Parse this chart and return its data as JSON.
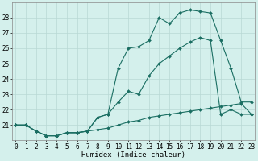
{
  "xlabel": "Humidex (Indice chaleur)",
  "bg_color": "#d4f0ec",
  "grid_color": "#b8d8d4",
  "line_color": "#1a6e62",
  "hours": [
    0,
    1,
    2,
    3,
    4,
    5,
    6,
    7,
    8,
    9,
    10,
    11,
    12,
    13,
    14,
    15,
    16,
    17,
    18,
    19,
    20,
    21,
    22,
    23
  ],
  "series1": [
    21.0,
    21.0,
    20.6,
    20.3,
    20.3,
    20.5,
    20.5,
    20.6,
    21.5,
    21.7,
    24.7,
    26.0,
    26.1,
    26.5,
    28.0,
    27.6,
    28.3,
    28.5,
    28.4,
    28.3,
    26.5,
    24.7,
    22.5,
    22.5
  ],
  "series2": [
    21.0,
    21.0,
    20.6,
    20.3,
    20.3,
    20.5,
    20.5,
    20.6,
    21.5,
    21.7,
    22.5,
    23.2,
    23.0,
    24.2,
    25.0,
    25.5,
    26.0,
    26.4,
    26.7,
    26.5,
    21.7,
    22.0,
    21.7,
    21.7
  ],
  "series3": [
    21.0,
    21.0,
    20.6,
    20.3,
    20.3,
    20.5,
    20.5,
    20.6,
    20.7,
    20.8,
    21.0,
    21.2,
    21.3,
    21.5,
    21.6,
    21.7,
    21.8,
    21.9,
    22.0,
    22.1,
    22.2,
    22.3,
    22.4,
    21.7
  ],
  "ylim_min": 20,
  "ylim_max": 29,
  "yticks": [
    21,
    22,
    23,
    24,
    25,
    26,
    27,
    28
  ],
  "xlim_min": 0,
  "xlim_max": 23,
  "markersize": 2.0,
  "linewidth": 0.8,
  "tick_fontsize": 5.5,
  "label_fontsize": 6.5
}
